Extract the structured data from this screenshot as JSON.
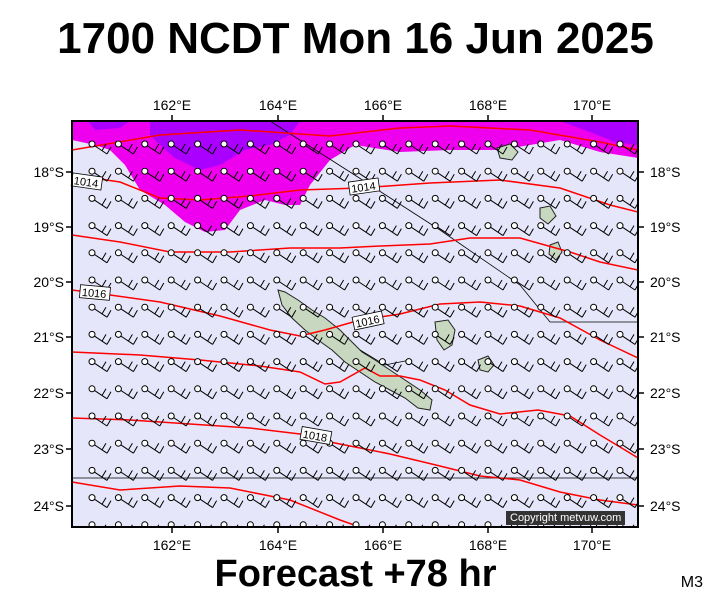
{
  "title": "1700 NCDT Mon 16 Jun 2025",
  "footer": "Forecast +78 hr",
  "panel_code": "M3",
  "copyright": "Copyright metvuw.com",
  "axes": {
    "lon_labels": [
      "162°E",
      "164°E",
      "166°E",
      "168°E",
      "170°E"
    ],
    "lat_labels": [
      "18°S",
      "19°S",
      "20°S",
      "21°S",
      "22°S",
      "23°S",
      "24°S"
    ]
  },
  "isobar_labels": [
    "1014",
    "1014",
    "1016",
    "1016",
    "1018"
  ],
  "colors": {
    "background": "#e6e6fa",
    "rain_light": "#ee00ee",
    "rain_heavy": "#aa00ff",
    "isobar": "#ff0000",
    "land": "#c8d8c0"
  },
  "wind": {
    "symbol": "wind-barb",
    "prevailing_from": "south-east"
  }
}
